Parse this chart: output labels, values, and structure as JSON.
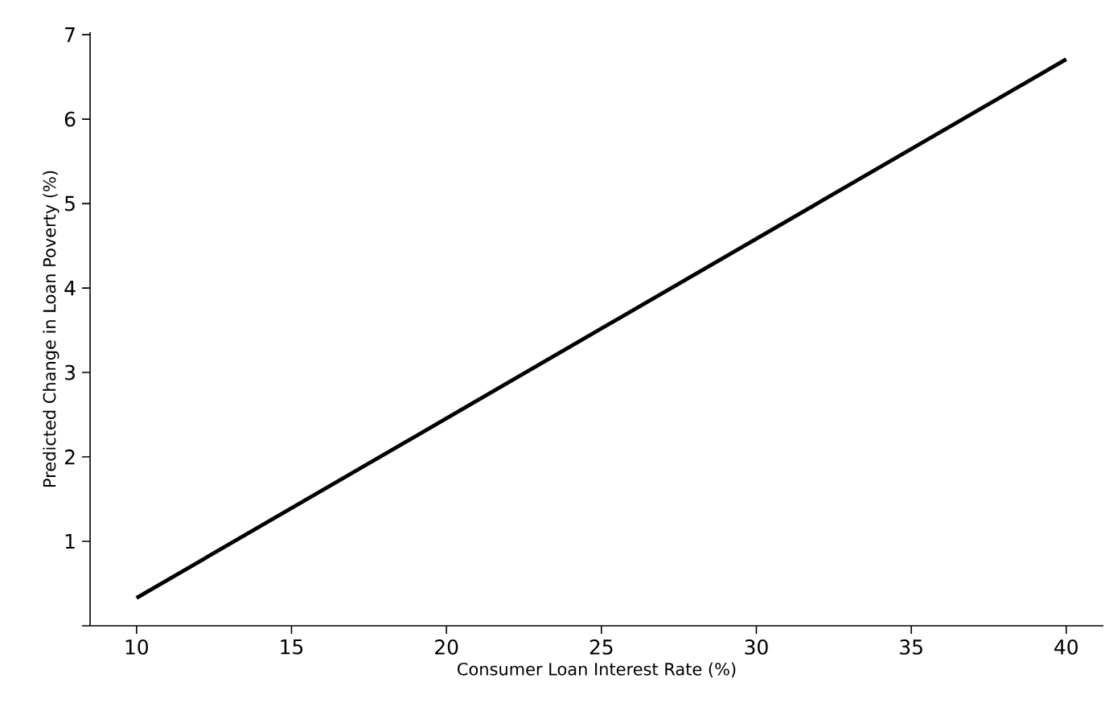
{
  "chart_data": {
    "type": "line",
    "xlabel": "Consumer Loan Interest Rate (%)",
    "ylabel": "Predicted Change in Loan Poverty (%)",
    "x": [
      10,
      40
    ],
    "series": [
      {
        "color": "#000000",
        "values": [
          0.33,
          6.71
        ]
      }
    ],
    "xlim": [
      8.5,
      41.2
    ],
    "ylim": [
      0,
      7.03
    ],
    "xticks": [
      10,
      15,
      20,
      25,
      30,
      35,
      40
    ],
    "yticks": [
      {
        "value": 0,
        "label": null
      },
      1,
      2,
      3,
      4,
      5,
      6,
      7
    ],
    "grid": false,
    "marker": "none",
    "line_style": "solid"
  }
}
